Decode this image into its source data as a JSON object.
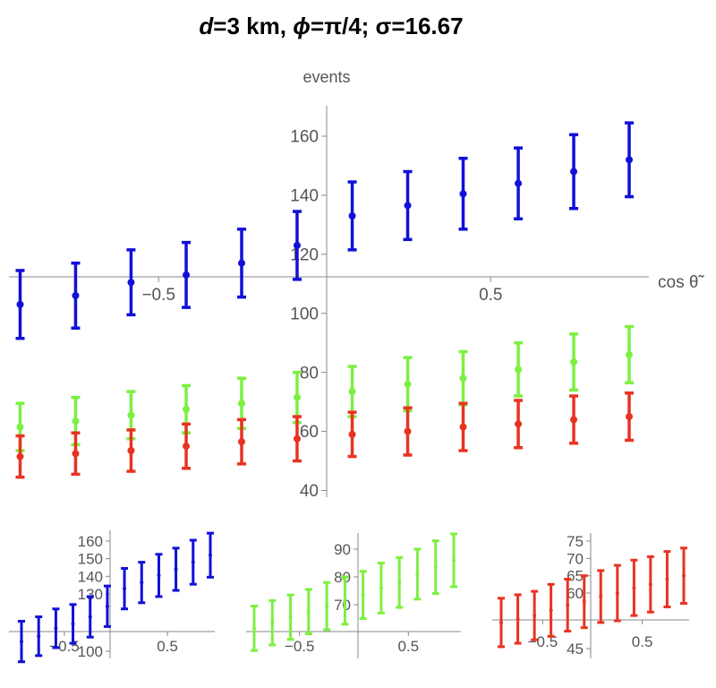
{
  "title": {
    "d_symbol": "d",
    "d_text": "=3 km, ",
    "phi_symbol": "ϕ",
    "phi_text": "=π/4; σ=16.67"
  },
  "chart_data": [
    {
      "id": "main",
      "type": "scatter",
      "xlabel": "cos θ̃",
      "ylabel": "events",
      "xlim": [
        -1.0,
        1.0
      ],
      "ylim": [
        35,
        170
      ],
      "x_ticks": [
        "−0.5",
        "0.5"
      ],
      "y_ticks": [
        "40",
        "60",
        "80",
        "100",
        "120",
        "140",
        "160"
      ],
      "x": [
        -0.917,
        -0.75,
        -0.583,
        -0.417,
        -0.25,
        -0.083,
        0.083,
        0.25,
        0.417,
        0.583,
        0.75,
        0.917
      ],
      "series": [
        {
          "color": "#1010d8",
          "values": [
            103,
            106,
            110.5,
            113,
            117,
            123,
            133,
            136.5,
            140.5,
            144,
            148,
            152
          ],
          "err": [
            11.5,
            11,
            11,
            11,
            11.5,
            11.5,
            11.5,
            11.5,
            12,
            12,
            12.5,
            12.5
          ]
        },
        {
          "color": "#7cf040",
          "values": [
            61.5,
            63.5,
            65.5,
            67.5,
            69.5,
            71.5,
            73.5,
            76,
            78,
            81,
            83.5,
            86
          ],
          "err": [
            8,
            8,
            8,
            8,
            8.5,
            8.5,
            8.5,
            9,
            9,
            9,
            9.5,
            9.5
          ]
        },
        {
          "color": "#e83322",
          "values": [
            51.5,
            52.5,
            53.5,
            55,
            56.5,
            57.5,
            59,
            60,
            61.5,
            62.5,
            64,
            65
          ],
          "err": [
            7,
            7,
            7,
            7.5,
            7.5,
            7.5,
            7.5,
            8,
            8,
            8,
            8,
            8
          ]
        }
      ]
    },
    {
      "id": "inset-blue",
      "type": "scatter",
      "xlim": [
        -1.0,
        1.0
      ],
      "ylim": [
        100,
        170
      ],
      "x_ticks": [
        "−0.5",
        "0.5"
      ],
      "y_ticks": [
        "100",
        "130",
        "140",
        "150",
        "160"
      ],
      "x": [
        -0.917,
        -0.75,
        -0.583,
        -0.417,
        -0.25,
        -0.083,
        0.083,
        0.25,
        0.417,
        0.583,
        0.75,
        0.917
      ],
      "series": [
        {
          "color": "#1010d8",
          "values": [
            103,
            106,
            110.5,
            113,
            117,
            123,
            133,
            136.5,
            140.5,
            144,
            148,
            152
          ],
          "err": [
            11.5,
            11,
            11,
            11,
            11.5,
            11.5,
            11.5,
            11.5,
            12,
            12,
            12.5,
            12.5
          ]
        }
      ]
    },
    {
      "id": "inset-green",
      "type": "scatter",
      "xlim": [
        -1.0,
        1.0
      ],
      "ylim": [
        50,
        98
      ],
      "x_ticks": [
        "−0.5",
        "0.5"
      ],
      "y_ticks": [
        "70",
        "80",
        "90"
      ],
      "x": [
        -0.917,
        -0.75,
        -0.583,
        -0.417,
        -0.25,
        -0.083,
        0.083,
        0.25,
        0.417,
        0.583,
        0.75,
        0.917
      ],
      "series": [
        {
          "color": "#7cf040",
          "values": [
            61.5,
            63.5,
            65.5,
            67.5,
            69.5,
            71.5,
            73.5,
            76,
            78,
            81,
            83.5,
            86
          ],
          "err": [
            8,
            8,
            8,
            8,
            8.5,
            8.5,
            8.5,
            9,
            9,
            9,
            9.5,
            9.5
          ]
        }
      ]
    },
    {
      "id": "inset-red",
      "type": "scatter",
      "xlim": [
        -1.0,
        1.0
      ],
      "ylim": [
        42,
        76
      ],
      "x_ticks": [
        "−0.5",
        "0.5"
      ],
      "y_ticks": [
        "45",
        "60",
        "65",
        "70",
        "75"
      ],
      "x": [
        -0.917,
        -0.75,
        -0.583,
        -0.417,
        -0.25,
        -0.083,
        0.083,
        0.25,
        0.417,
        0.583,
        0.75,
        0.917
      ],
      "series": [
        {
          "color": "#e83322",
          "values": [
            51.5,
            52.5,
            53.5,
            55,
            56.5,
            57.5,
            59,
            60,
            61.5,
            62.5,
            64,
            65
          ],
          "err": [
            7,
            7,
            7,
            7.5,
            7.5,
            7.5,
            7.5,
            8,
            8,
            8,
            8,
            8
          ]
        }
      ]
    }
  ]
}
